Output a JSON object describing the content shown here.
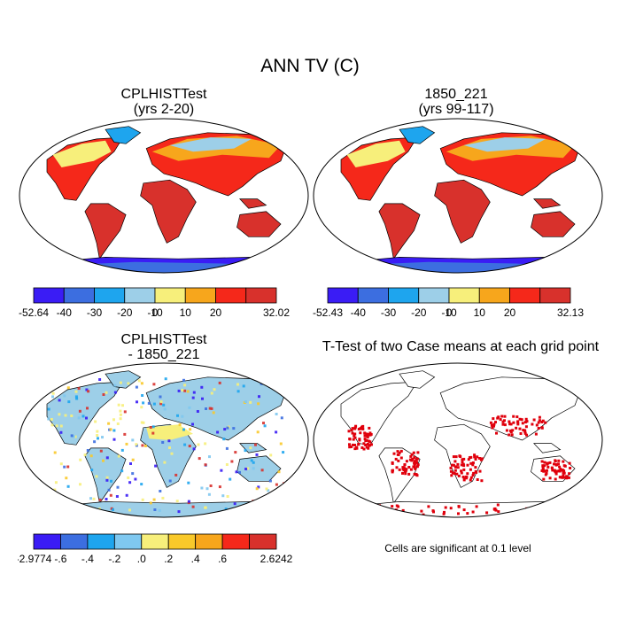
{
  "figure": {
    "title": "ANN TV (C)",
    "panels": [
      {
        "id": "test",
        "title_line1": "CPLHISTTest",
        "title_line2": "(yrs 2-20)",
        "colorbar": {
          "labels": [
            "-52.64",
            "-40",
            "-30",
            "-20",
            "-10",
            "0",
            "10",
            "20",
            "32.02"
          ],
          "colors": [
            "#3a1cf5",
            "#3c6ee0",
            "#1ea5ee",
            "#9dcfe8",
            "#f7ef7b",
            "#f7a61c",
            "#f5281a",
            "#d8312c"
          ]
        }
      },
      {
        "id": "control",
        "title_line1": "1850_221",
        "title_line2": "(yrs 99-117)",
        "colorbar": {
          "labels": [
            "-52.43",
            "-40",
            "-30",
            "-20",
            "-10",
            "0",
            "10",
            "20",
            "32.13"
          ],
          "colors": [
            "#3a1cf5",
            "#3c6ee0",
            "#1ea5ee",
            "#9dcfe8",
            "#f7ef7b",
            "#f7a61c",
            "#f5281a",
            "#d8312c"
          ]
        }
      },
      {
        "id": "diff",
        "title_line1": "CPLHISTTest",
        "title_line2": "- 1850_221",
        "colorbar": {
          "labels": [
            "-2.9774",
            "-.6",
            "-.4",
            "-.2",
            ".0",
            ".2",
            ".4",
            ".6",
            "2.6242"
          ],
          "colors": [
            "#3a1cf5",
            "#3c6ee0",
            "#1ea5ee",
            "#7fc8f0",
            "#f7ef7b",
            "#f9c92a",
            "#f7a61c",
            "#f5281a",
            "#d8312c"
          ]
        }
      },
      {
        "id": "ttest",
        "title_line1": "T-Test of two Case means at each grid point",
        "title_line2": "",
        "note": "Cells are significant at 0.1 level",
        "significance_color": "#e0000c"
      }
    ]
  }
}
